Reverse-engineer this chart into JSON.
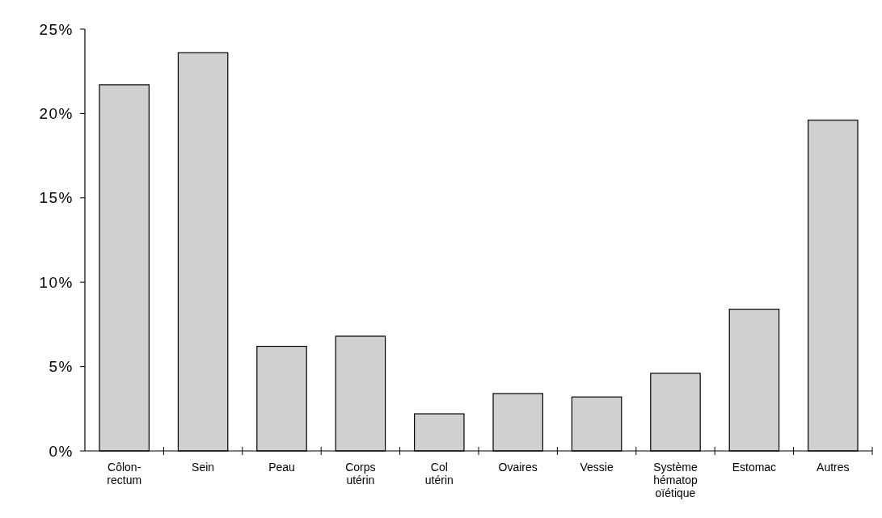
{
  "chart_data": {
    "type": "bar",
    "categories": [
      "Côlon-\nrectum",
      "Sein",
      "Peau",
      "Corps\nutérin",
      "Col\nutérin",
      "Ovaires",
      "Vessie",
      "Système\nhématop\noïétique",
      "Estomac",
      "Autres"
    ],
    "values": [
      21.7,
      23.6,
      6.2,
      6.8,
      2.2,
      3.4,
      3.2,
      4.6,
      8.4,
      19.6
    ],
    "color": "#d0d0d0",
    "ylim": [
      0,
      25
    ],
    "yticks": [
      {
        "value": 0,
        "label": "0%"
      },
      {
        "value": 5,
        "label": "5%"
      },
      {
        "value": 10,
        "label": "10%"
      },
      {
        "value": 15,
        "label": "15%"
      },
      {
        "value": 20,
        "label": "20%"
      },
      {
        "value": 25,
        "label": "25%"
      }
    ],
    "grid": false
  }
}
